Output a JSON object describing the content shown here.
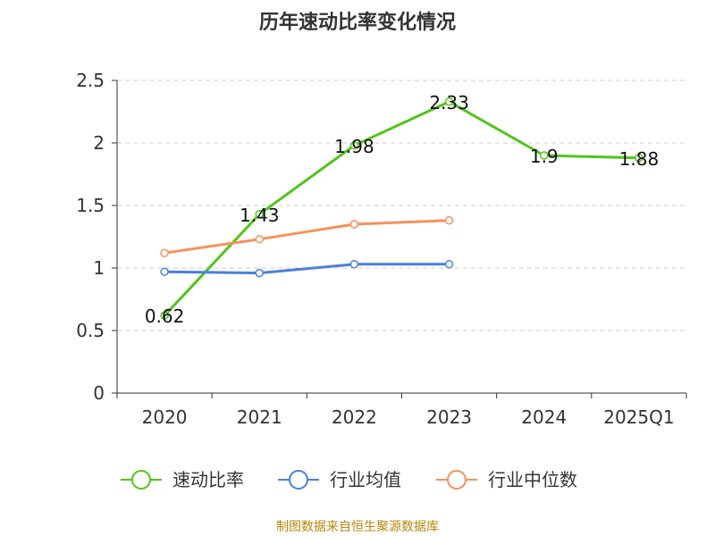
{
  "chart_data": {
    "type": "line",
    "title": "历年速动比率变化情况",
    "categories": [
      "2020",
      "2021",
      "2022",
      "2023",
      "2024",
      "2025Q1"
    ],
    "ylim": [
      0,
      2.5
    ],
    "yticks": [
      0,
      0.5,
      1,
      1.5,
      2,
      2.5
    ],
    "ytick_labels": [
      "0",
      "0.5",
      "1",
      "1.5",
      "2",
      "2.5"
    ],
    "grid": true,
    "legend_position": "bottom",
    "series": [
      {
        "name": "速动比率",
        "color": "#52c41a",
        "values": [
          0.62,
          1.43,
          1.98,
          2.33,
          1.9,
          1.88
        ],
        "labels": [
          "0.62",
          "1.43",
          "1.98",
          "2.33",
          "1.9",
          "1.88"
        ]
      },
      {
        "name": "行业均值",
        "color": "#4a7fdc",
        "values": [
          0.97,
          0.96,
          1.03,
          1.03,
          null,
          null
        ]
      },
      {
        "name": "行业中位数",
        "color": "#f7905a",
        "values": [
          1.12,
          1.23,
          1.35,
          1.38,
          null,
          null
        ]
      }
    ]
  },
  "source": "制图数据来自恒生聚源数据库"
}
